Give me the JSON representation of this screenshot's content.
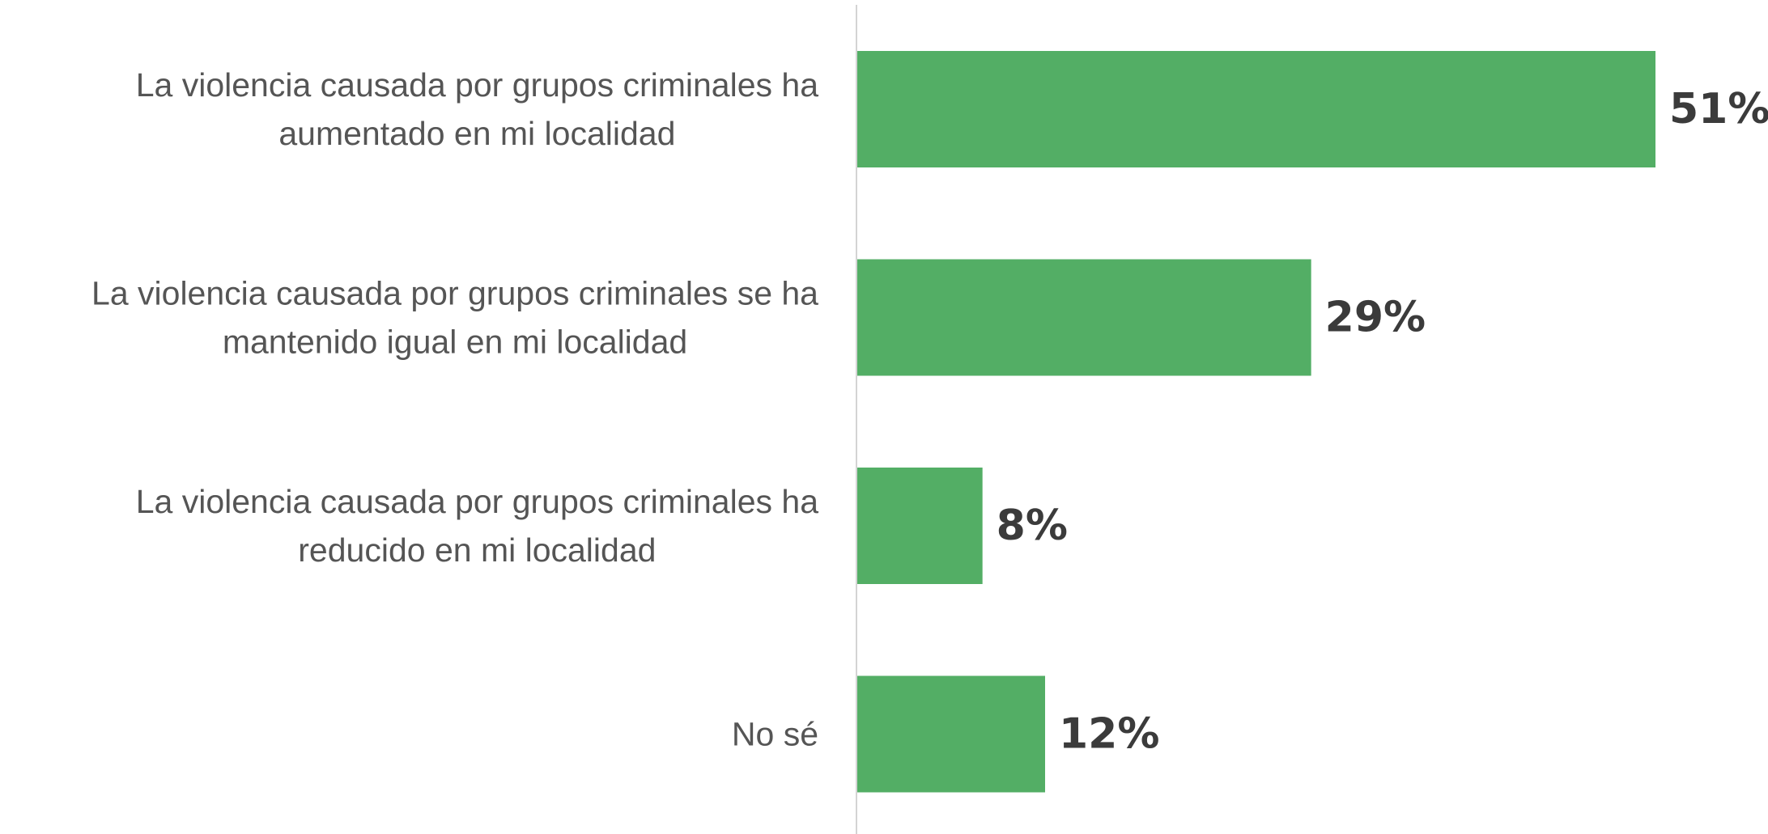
{
  "chart_data": {
    "type": "bar",
    "orientation": "horizontal",
    "categories": [
      [
        "La violencia causada por  grupos criminales  ha",
        "aumentado en mi localidad"
      ],
      [
        "La violencia causada por grupos criminales se ha",
        "mantenido igual en mi localidad"
      ],
      [
        "La violencia causada por  grupos criminales ha",
        "reducido en mi localidad"
      ],
      [
        "No sé"
      ]
    ],
    "values": [
      51,
      29,
      8,
      12
    ],
    "value_labels": [
      "51%",
      "29%",
      "8%",
      "12%"
    ],
    "bar_color": "#53ae65",
    "axis_line_color": "#d4d4d4",
    "label_color": "#555555",
    "value_label_color": "#3b3b3b",
    "xlim": [
      0,
      51
    ],
    "grid": false,
    "legend": "none"
  }
}
